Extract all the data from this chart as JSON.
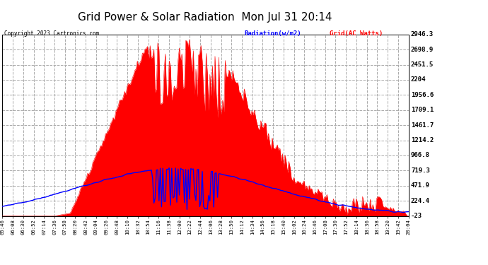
{
  "title": "Grid Power & Solar Radiation  Mon Jul 31 20:14",
  "copyright": "Copyright 2023 Cartronics.com",
  "legend_radiation": "Radiation(w/m2)",
  "legend_grid": "Grid(AC Watts)",
  "y_ticks": [
    -23.0,
    224.4,
    471.9,
    719.3,
    966.8,
    1214.2,
    1461.7,
    1709.1,
    1956.6,
    2204.0,
    2451.5,
    2698.9,
    2946.3
  ],
  "y_min": -23.0,
  "y_max": 2946.3,
  "background_color": "#ffffff",
  "plot_bg_color": "#ffffff",
  "grid_color": "#aaaaaa",
  "red_fill_color": "#ff0000",
  "blue_line_color": "#0000ff",
  "title_color": "#000000",
  "title_fontsize": 11,
  "x_labels": [
    "05:46",
    "06:08",
    "06:30",
    "06:52",
    "07:14",
    "07:36",
    "07:58",
    "08:20",
    "08:42",
    "09:04",
    "09:26",
    "09:48",
    "10:10",
    "10:32",
    "10:54",
    "11:16",
    "11:38",
    "12:00",
    "12:22",
    "12:44",
    "13:06",
    "13:28",
    "13:50",
    "14:12",
    "14:34",
    "14:56",
    "15:18",
    "15:40",
    "16:02",
    "16:24",
    "16:46",
    "17:08",
    "17:30",
    "17:52",
    "18:14",
    "18:36",
    "18:58",
    "19:20",
    "19:42",
    "20:04"
  ]
}
